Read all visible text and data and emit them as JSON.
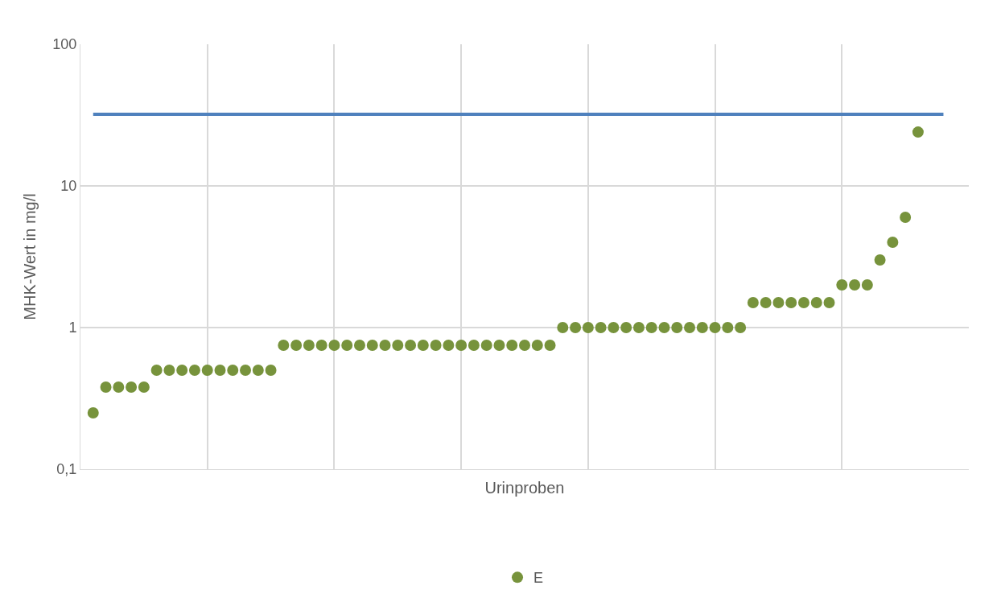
{
  "chart_data": {
    "type": "scatter",
    "xlabel": "Urinproben",
    "ylabel": "MHK-Wert in mg/l",
    "log": "y",
    "categories": [
      null,
      null,
      null,
      null,
      null,
      null,
      null,
      null,
      null,
      null,
      null,
      null,
      null,
      null,
      null,
      null,
      null,
      null,
      null,
      null,
      null,
      null,
      null,
      null,
      null,
      null,
      null,
      null,
      null,
      null,
      null,
      null,
      null,
      null,
      null,
      null,
      null,
      null,
      null,
      null,
      null,
      null,
      null,
      null,
      null,
      null,
      null,
      null,
      null,
      null,
      null,
      null,
      null,
      null,
      null,
      null,
      null,
      null,
      null,
      null,
      null,
      null,
      null,
      null,
      null,
      null,
      null,
      null,
      null,
      null
    ],
    "ylim": [
      0.1,
      100
    ],
    "yticks": [
      {
        "value": 0.1,
        "label": "0,1"
      },
      {
        "value": 1,
        "label": "1"
      },
      {
        "value": 10,
        "label": "10"
      },
      {
        "value": 100,
        "label": "100"
      }
    ],
    "tick_labels": "y",
    "grid": true,
    "legend": "bottom",
    "marker": "circle",
    "series": [
      {
        "type": "line",
        "color": "#4f81bd",
        "marker": "none",
        "values": [
          null,
          32,
          32,
          32,
          32,
          32,
          32,
          32,
          32,
          32,
          32,
          32,
          32,
          32,
          32,
          32,
          32,
          32,
          32,
          32,
          32,
          32,
          32,
          32,
          32,
          32,
          32,
          32,
          32,
          32,
          32,
          32,
          32,
          32,
          32,
          32,
          32,
          32,
          32,
          32,
          32,
          32,
          32,
          32,
          32,
          32,
          32,
          32,
          32,
          32,
          32,
          32,
          32,
          32,
          32,
          32,
          32,
          32,
          32,
          32,
          32,
          32,
          32,
          32,
          32,
          32,
          32,
          32,
          32,
          null
        ]
      },
      {
        "name": "E",
        "color": "#77933c",
        "values": [
          null,
          0.25,
          0.38,
          0.38,
          0.38,
          0.38,
          0.5,
          0.5,
          0.5,
          0.5,
          0.5,
          0.5,
          0.5,
          0.5,
          0.5,
          0.5,
          0.75,
          0.75,
          0.75,
          0.75,
          0.75,
          0.75,
          0.75,
          0.75,
          0.75,
          0.75,
          0.75,
          0.75,
          0.75,
          0.75,
          0.75,
          0.75,
          0.75,
          0.75,
          0.75,
          0.75,
          0.75,
          0.75,
          1,
          1,
          1,
          1,
          1,
          1,
          1,
          1,
          1,
          1,
          1,
          1,
          1,
          1,
          1,
          1.5,
          1.5,
          1.5,
          1.5,
          1.5,
          1.5,
          1.5,
          2,
          2,
          2,
          3,
          4,
          6,
          24,
          null,
          null,
          null
        ]
      }
    ]
  }
}
